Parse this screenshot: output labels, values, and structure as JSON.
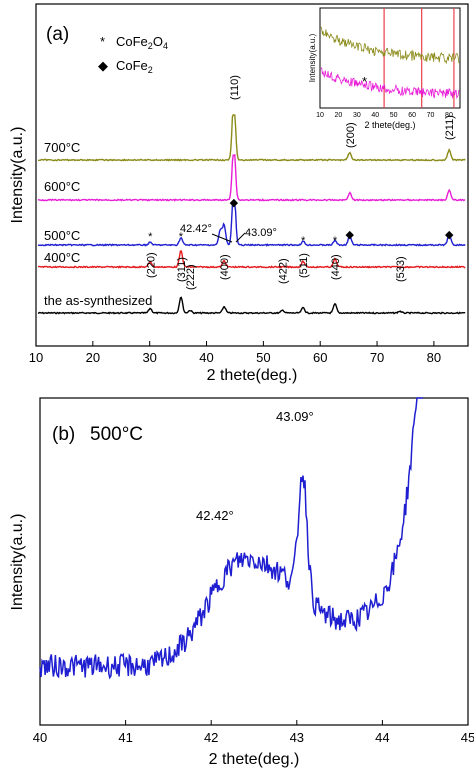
{
  "chart_data": [
    {
      "type": "line",
      "panel_label": "(a)",
      "xlabel": "2 thete(deg.)",
      "ylabel": "Intensity(a.u.)",
      "xlim": [
        10,
        86
      ],
      "xticks": [
        "10",
        "20",
        "30",
        "40",
        "50",
        "60",
        "70",
        "80"
      ],
      "legend": [
        {
          "symbol": "*",
          "label": "CoFe2O4"
        },
        {
          "symbol": "◆",
          "label": "CoFe2"
        }
      ],
      "series": [
        {
          "name": "the as-synthesized",
          "color": "#000000",
          "peaks": [
            [
              30.1,
              0.25
            ],
            [
              35.5,
              0.9
            ],
            [
              37.1,
              0.15
            ],
            [
              43.1,
              0.35
            ],
            [
              53.4,
              0.15
            ],
            [
              57.0,
              0.3
            ],
            [
              62.6,
              0.5
            ],
            [
              74.0,
              0.1
            ]
          ]
        },
        {
          "name": "400°C",
          "color": "#e41a1c",
          "peaks": [
            [
              30.1,
              0.3
            ],
            [
              35.5,
              0.9
            ],
            [
              43.1,
              0.35
            ],
            [
              57.0,
              0.3
            ],
            [
              62.6,
              0.45
            ]
          ]
        },
        {
          "name": "500°C",
          "color": "#1f1fd1",
          "peaks": [
            [
              30.1,
              0.15
            ],
            [
              35.5,
              0.4
            ],
            [
              42.42,
              0.8
            ],
            [
              43.09,
              1.1
            ],
            [
              44.8,
              3.5
            ],
            [
              57.0,
              0.2
            ],
            [
              62.6,
              0.25
            ],
            [
              65.2,
              0.5
            ],
            [
              82.7,
              0.6
            ]
          ]
        },
        {
          "name": "600°C",
          "color": "#e81ed6",
          "peaks": [
            [
              44.8,
              3.2
            ],
            [
              65.2,
              0.4
            ],
            [
              82.7,
              0.55
            ]
          ]
        },
        {
          "name": "700°C",
          "color": "#8b8b1a",
          "peaks": [
            [
              44.8,
              3.5
            ],
            [
              65.2,
              0.4
            ],
            [
              82.7,
              0.55
            ]
          ]
        }
      ],
      "hkl_labels": [
        {
          "x": 30.1,
          "text": "(220)"
        },
        {
          "x": 35.5,
          "text": "(311)"
        },
        {
          "x": 37.1,
          "text": "(222)"
        },
        {
          "x": 43.1,
          "text": "(400)"
        },
        {
          "x": 53.4,
          "text": "(422)"
        },
        {
          "x": 57.0,
          "text": "(511)"
        },
        {
          "x": 62.6,
          "text": "(440)"
        },
        {
          "x": 74.0,
          "text": "(533)"
        },
        {
          "x": 44.8,
          "text": "(110)"
        },
        {
          "x": 65.2,
          "text": "(200)"
        },
        {
          "x": 82.7,
          "text": "(211)"
        }
      ],
      "annotations": [
        "42.42°",
        "43.09°"
      ],
      "inset": {
        "xlabel": "2 thete(deg.)",
        "ylabel": "Intensity(a.u.)",
        "xticks": [
          "10",
          "20",
          "30",
          "40",
          "50",
          "60",
          "70",
          "80"
        ],
        "marker_lines_x": [
          44.8,
          65.2,
          82.7
        ]
      }
    },
    {
      "type": "line",
      "panel_label": "(b)",
      "title": "500°C",
      "xlabel": "2 thete(deg.)",
      "ylabel": "Intensity(a.u.)",
      "xlim": [
        40,
        45
      ],
      "xticks": [
        "40",
        "41",
        "42",
        "43",
        "44",
        "45"
      ],
      "series": [
        {
          "name": "500°C",
          "color": "#1f1fd1"
        }
      ],
      "annotations": [
        {
          "x": 42.42,
          "text": "42.42°"
        },
        {
          "x": 43.09,
          "text": "43.09°"
        }
      ]
    }
  ]
}
